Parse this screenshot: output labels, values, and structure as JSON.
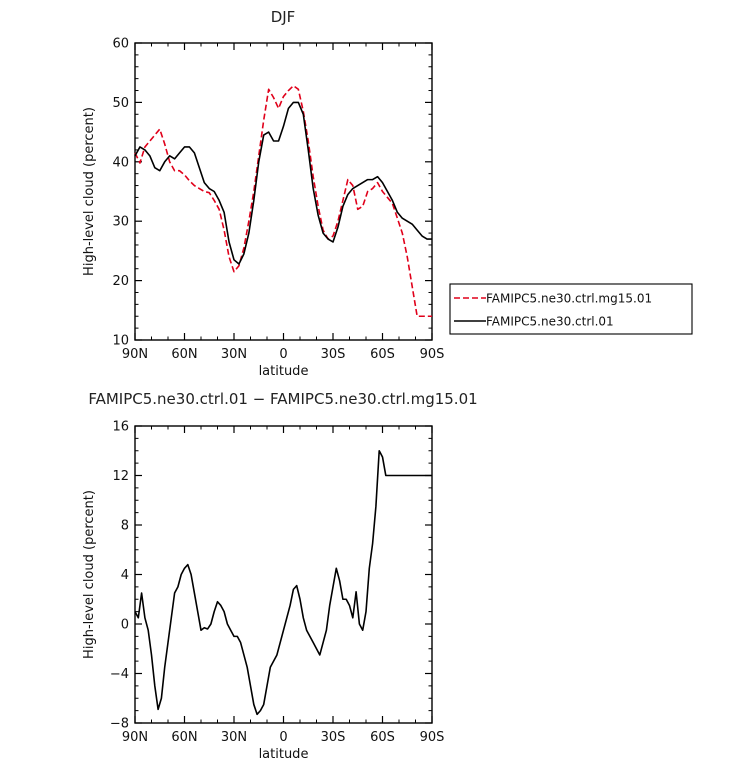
{
  "figure_title_top": "DJF",
  "figure_title_bottom": "FAMIPC5.ne30.ctrl.01 − FAMIPC5.ne30.ctrl.mg15.01",
  "chart_data": [
    {
      "type": "line",
      "title": "DJF",
      "xlabel": "latitude",
      "ylabel": "High-level cloud (percent)",
      "xlim": [
        -90,
        90
      ],
      "ylim": [
        10,
        60
      ],
      "x_direction": "north-to-south",
      "x_ticks": [
        -90,
        -60,
        -30,
        0,
        30,
        60,
        90
      ],
      "x_tick_labels": [
        "90N",
        "60N",
        "30N",
        "0",
        "30S",
        "60S",
        "90S"
      ],
      "y_ticks": [
        10,
        20,
        30,
        40,
        50,
        60
      ],
      "y_tick_labels": [
        "10",
        "20",
        "30",
        "40",
        "50",
        "60"
      ],
      "legend_position": "right",
      "series": [
        {
          "name": "FAMIPC5.ne30.ctrl.mg15.01",
          "color": "#e0001a",
          "dash": "dashed",
          "x": [
            -90,
            -87,
            -84,
            -81,
            -78,
            -75,
            -72,
            -69,
            -66,
            -63,
            -60,
            -57,
            -54,
            -51,
            -48,
            -45,
            -42,
            -39,
            -36,
            -33,
            -30,
            -27,
            -24,
            -21,
            -18,
            -15,
            -12,
            -9,
            -6,
            -3,
            0,
            3,
            6,
            9,
            12,
            15,
            18,
            21,
            24,
            27,
            30,
            33,
            36,
            39,
            42,
            45,
            48,
            51,
            54,
            57,
            60,
            63,
            66,
            69,
            72,
            75,
            78,
            81,
            84,
            87,
            90
          ],
          "y": [
            41.5,
            39.8,
            42.5,
            43.5,
            44.5,
            45.5,
            43.0,
            40.0,
            38.5,
            38.5,
            37.8,
            36.8,
            36.0,
            35.5,
            35.0,
            34.8,
            33.5,
            32.0,
            28.5,
            24.0,
            21.5,
            22.5,
            25.5,
            30.0,
            35.0,
            41.0,
            47.0,
            52.2,
            50.8,
            49.0,
            51.0,
            52.0,
            52.8,
            52.2,
            48.5,
            43.5,
            37.5,
            32.5,
            28.5,
            27.0,
            27.5,
            30.0,
            33.5,
            37.0,
            36.0,
            32.0,
            32.5,
            35.0,
            35.5,
            36.5,
            35.0,
            34.0,
            33.0,
            30.5,
            28.0,
            24.0,
            19.0,
            14.0,
            14.0,
            14.0,
            14.0
          ]
        },
        {
          "name": "FAMIPC5.ne30.ctrl.01",
          "color": "#000000",
          "dash": "solid",
          "x": [
            -90,
            -87,
            -84,
            -81,
            -78,
            -75,
            -72,
            -69,
            -66,
            -63,
            -60,
            -57,
            -54,
            -51,
            -48,
            -45,
            -42,
            -39,
            -36,
            -33,
            -30,
            -27,
            -24,
            -21,
            -18,
            -15,
            -12,
            -9,
            -6,
            -3,
            0,
            3,
            6,
            9,
            12,
            15,
            18,
            21,
            24,
            27,
            30,
            33,
            36,
            39,
            42,
            45,
            48,
            51,
            54,
            57,
            60,
            63,
            66,
            69,
            72,
            75,
            78,
            81,
            84,
            87,
            90
          ],
          "y": [
            41.0,
            42.5,
            42.0,
            41.0,
            39.0,
            38.5,
            40.0,
            41.0,
            40.5,
            41.5,
            42.5,
            42.5,
            41.5,
            39.0,
            36.5,
            35.5,
            35.0,
            33.5,
            31.5,
            26.5,
            23.5,
            22.8,
            24.5,
            28.0,
            33.5,
            40.0,
            44.5,
            45.0,
            43.5,
            43.5,
            46.0,
            49.0,
            50.0,
            50.0,
            48.0,
            42.0,
            35.5,
            31.0,
            28.0,
            27.0,
            26.5,
            29.0,
            32.5,
            34.5,
            35.5,
            36.0,
            36.5,
            37.0,
            37.0,
            37.5,
            36.5,
            35.0,
            33.5,
            31.5,
            30.5,
            30.0,
            29.5,
            28.5,
            27.5,
            27.0,
            27.0
          ]
        }
      ]
    },
    {
      "type": "line",
      "title": "FAMIPC5.ne30.ctrl.01 − FAMIPC5.ne30.ctrl.mg15.01",
      "xlabel": "latitude",
      "ylabel": "High-level cloud (percent)",
      "xlim": [
        -90,
        90
      ],
      "ylim": [
        -8,
        16
      ],
      "x_direction": "north-to-south",
      "x_ticks": [
        -90,
        -60,
        -30,
        0,
        30,
        60,
        90
      ],
      "x_tick_labels": [
        "90N",
        "60N",
        "30N",
        "0",
        "30S",
        "60S",
        "90S"
      ],
      "y_ticks": [
        -8,
        -4,
        0,
        4,
        8,
        12,
        16
      ],
      "y_tick_labels": [
        "−8",
        "−4",
        "0",
        "4",
        "8",
        "12",
        "16"
      ],
      "series": [
        {
          "color": "#000000",
          "dash": "solid",
          "x": [
            -90,
            -88,
            -86,
            -84,
            -82,
            -80,
            -78,
            -76,
            -74,
            -72,
            -70,
            -68,
            -66,
            -64,
            -62,
            -60,
            -58,
            -56,
            -54,
            -52,
            -50,
            -48,
            -46,
            -44,
            -42,
            -40,
            -38,
            -36,
            -34,
            -32,
            -30,
            -28,
            -26,
            -24,
            -22,
            -20,
            -18,
            -16,
            -14,
            -12,
            -10,
            -8,
            -6,
            -4,
            -2,
            0,
            2,
            4,
            6,
            8,
            10,
            12,
            14,
            16,
            18,
            20,
            22,
            24,
            26,
            28,
            30,
            32,
            34,
            36,
            38,
            40,
            42,
            44,
            46,
            48,
            50,
            52,
            54,
            56,
            58,
            60,
            62,
            64,
            66,
            68,
            70,
            72,
            74,
            76,
            78,
            80,
            82,
            84,
            86,
            88,
            90
          ],
          "y": [
            1.0,
            0.5,
            2.5,
            0.5,
            -0.5,
            -2.5,
            -5.0,
            -6.9,
            -6.0,
            -3.5,
            -1.5,
            0.5,
            2.5,
            3.0,
            4.0,
            4.5,
            4.8,
            4.0,
            2.5,
            1.0,
            -0.5,
            -0.3,
            -0.4,
            0.0,
            1.0,
            1.8,
            1.5,
            1.0,
            0.0,
            -0.5,
            -1.0,
            -1.0,
            -1.5,
            -2.5,
            -3.5,
            -5.0,
            -6.5,
            -7.3,
            -7.0,
            -6.5,
            -5.0,
            -3.5,
            -3.0,
            -2.5,
            -1.5,
            -0.5,
            0.5,
            1.5,
            2.8,
            3.1,
            2.0,
            0.5,
            -0.5,
            -1.0,
            -1.5,
            -2.0,
            -2.5,
            -1.5,
            -0.5,
            1.5,
            3.0,
            4.5,
            3.5,
            2.0,
            2.0,
            1.5,
            0.5,
            2.6,
            0.0,
            -0.5,
            1.0,
            4.5,
            6.5,
            9.5,
            14.0,
            13.5,
            12.0,
            12.0,
            12.0,
            12.0,
            12.0,
            12.0,
            12.0,
            12.0,
            12.0,
            12.0,
            12.0,
            12.0,
            12.0,
            12.0,
            12.0
          ]
        }
      ]
    }
  ]
}
